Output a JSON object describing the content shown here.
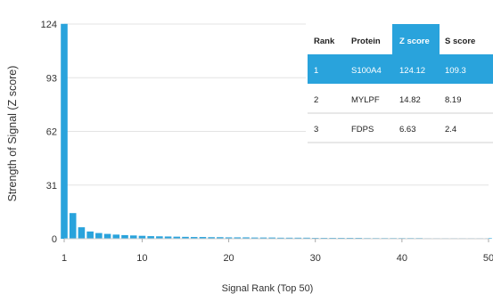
{
  "chart_data": {
    "type": "bar",
    "xlabel": "Signal Rank (Top 50)",
    "ylabel": "Strength of Signal (Z score)",
    "y_ticks": [
      0,
      31,
      62,
      93,
      124
    ],
    "x_ticks": [
      1,
      10,
      20,
      30,
      40,
      50
    ],
    "ylim": [
      0,
      124
    ],
    "xlim": [
      1,
      50
    ],
    "grid": "horizontal",
    "bar_color": "#29a3dc",
    "x": [
      1,
      2,
      3,
      4,
      5,
      6,
      7,
      8,
      9,
      10,
      11,
      12,
      13,
      14,
      15,
      16,
      17,
      18,
      19,
      20,
      21,
      22,
      23,
      24,
      25,
      26,
      27,
      28,
      29,
      30,
      31,
      32,
      33,
      34,
      35,
      36,
      37,
      38,
      39,
      40,
      41,
      42,
      43,
      44,
      45,
      46,
      47,
      48,
      49,
      50
    ],
    "values": [
      124.12,
      14.82,
      6.63,
      4.2,
      3.3,
      2.8,
      2.4,
      2.1,
      1.9,
      1.7,
      1.5,
      1.4,
      1.3,
      1.2,
      1.1,
      1.0,
      1.0,
      0.9,
      0.9,
      0.8,
      0.8,
      0.8,
      0.7,
      0.7,
      0.7,
      0.6,
      0.6,
      0.6,
      0.6,
      0.5,
      0.5,
      0.5,
      0.5,
      0.5,
      0.5,
      0.4,
      0.4,
      0.4,
      0.4,
      0.4,
      0.4,
      0.4,
      0.3,
      0.3,
      0.3,
      0.3,
      0.3,
      0.3,
      0.3,
      0.3
    ],
    "table": {
      "headers": [
        "Rank",
        "Protein",
        "Z score",
        "S score"
      ],
      "rows": [
        [
          "1",
          "S100A4",
          "124.12",
          "109.3"
        ],
        [
          "2",
          "MYLPF",
          "14.82",
          "8.19"
        ],
        [
          "3",
          "FDPS",
          "6.63",
          "2.4"
        ]
      ],
      "highlight_color": "#29a3dc",
      "highlight_row": 0,
      "highlight_header_col": 2
    }
  }
}
